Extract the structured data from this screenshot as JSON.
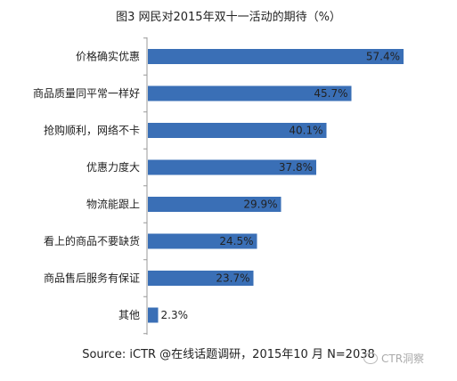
{
  "chart_data": {
    "type": "bar",
    "orientation": "horizontal",
    "title": "图3 网民对2015年双十一活动的期待（%）",
    "categories": [
      "价格确实优惠",
      "商品质量同平常一样好",
      "抢购顺利，网络不卡",
      "优惠力度大",
      "物流能跟上",
      "看上的商品不要缺货",
      "商品售后服务有保证",
      "其他"
    ],
    "values": [
      57.4,
      45.7,
      40.1,
      37.8,
      29.9,
      24.5,
      23.7,
      2.3
    ],
    "value_labels": [
      "57.4%",
      "45.7%",
      "40.1%",
      "37.8%",
      "29.9%",
      "24.5%",
      "23.7%",
      "2.3%"
    ],
    "xlim": [
      0,
      60
    ],
    "bar_color": "#3a6fb6",
    "grid": false,
    "xlabel": "",
    "ylabel": ""
  },
  "source": "Source: iCTR @在线话题调研，2015年10  月 N=2038",
  "watermark": "CTR洞察"
}
